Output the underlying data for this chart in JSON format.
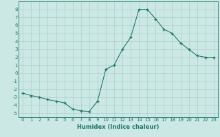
{
  "x": [
    0,
    1,
    2,
    3,
    4,
    5,
    6,
    7,
    8,
    9,
    10,
    11,
    12,
    13,
    14,
    15,
    16,
    17,
    18,
    19,
    20,
    21,
    22,
    23
  ],
  "y": [
    -2.5,
    -2.8,
    -3.0,
    -3.3,
    -3.5,
    -3.7,
    -4.5,
    -4.7,
    -4.8,
    -3.5,
    0.5,
    1.0,
    3.0,
    4.5,
    8.0,
    8.0,
    6.8,
    5.5,
    5.0,
    3.8,
    3.0,
    2.2,
    2.0,
    2.0
  ],
  "xlabel": "Humidex (Indice chaleur)",
  "ylim": [
    -5.5,
    9.0
  ],
  "xlim": [
    -0.5,
    23.5
  ],
  "yticks": [
    -5,
    -4,
    -3,
    -2,
    -1,
    0,
    1,
    2,
    3,
    4,
    5,
    6,
    7,
    8
  ],
  "xticks": [
    0,
    1,
    2,
    3,
    4,
    5,
    6,
    7,
    8,
    9,
    10,
    11,
    12,
    13,
    14,
    15,
    16,
    17,
    18,
    19,
    20,
    21,
    22,
    23
  ],
  "line_color": "#1a7a6e",
  "marker": "+",
  "markersize": 3.5,
  "linewidth": 0.8,
  "bg_color": "#cce8e5",
  "grid_color": "#aacfcb",
  "xlabel_fontsize": 6.0,
  "tick_fontsize": 5.0
}
